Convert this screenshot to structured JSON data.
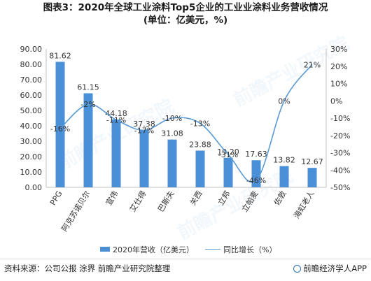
{
  "title_line1": "图表3：2020年全球工业涂料Top5企业的工业业涂料业务营收情况",
  "title_line2": "(单位：亿美元，%)",
  "chart_data": {
    "type": "bar",
    "categories": [
      "PPG",
      "阿克苏诺贝尔",
      "宣伟",
      "艾仕得",
      "巴斯夫",
      "关西",
      "立邦",
      "立帕麦",
      "佐敦",
      "海虹老人"
    ],
    "series": [
      {
        "name": "2020年营收（亿美元）",
        "type": "bar",
        "axis": "left",
        "values": [
          81.62,
          61.15,
          44.18,
          37.38,
          31.08,
          23.88,
          19.2,
          17.63,
          13.82,
          12.67
        ],
        "labels": [
          "81.62",
          "61.15",
          "44.18",
          "37.38",
          "31.08",
          "23.88",
          "19.20",
          "17.63",
          "13.82",
          "12.67"
        ]
      },
      {
        "name": "同比增长（%）",
        "type": "line",
        "axis": "right",
        "points": [
          {
            "index": 0,
            "value": -16,
            "label": "-16%"
          },
          {
            "index": 1,
            "value": -2,
            "label": "-2%"
          },
          {
            "index": 2,
            "value": -11,
            "label": "-11%"
          },
          {
            "index": 3,
            "value": -17,
            "label": "-17%"
          },
          {
            "index": 4,
            "value": -10,
            "label": "-10%"
          },
          {
            "index": 5,
            "value": -13,
            "label": "-13%"
          },
          {
            "index": 6,
            "value": -31,
            "label": "-31%"
          },
          {
            "index": 7,
            "value": -46,
            "label": "-46%"
          },
          {
            "index": 8,
            "value": 0,
            "label": "0%"
          },
          {
            "index": 9,
            "value": 21,
            "label": "21%"
          }
        ]
      }
    ],
    "y_left": {
      "min": 0,
      "max": 90,
      "step": 10,
      "ticks": [
        "0.00",
        "10.00",
        "20.00",
        "30.00",
        "40.00",
        "50.00",
        "60.00",
        "70.00",
        "80.00",
        "90.00"
      ]
    },
    "y_right": {
      "min": -50,
      "max": 30,
      "step": 10,
      "ticks": [
        "-50%",
        "-40%",
        "-30%",
        "-20%",
        "-10%",
        "0%",
        "10%",
        "20%",
        "30%"
      ]
    },
    "grid": false,
    "legend": "bottom",
    "colors": {
      "bar": "#4a90d9",
      "line": "#5b9bd5"
    }
  },
  "legend": {
    "bar_label": "2020年营收（亿美元）",
    "line_label": "同比增长（%）"
  },
  "footer": {
    "source": "资料来源：公司公报 涂界 前瞻产业研究院整理",
    "brand": "前瞻经济学人APP"
  },
  "watermark": "前瞻产业研究院"
}
